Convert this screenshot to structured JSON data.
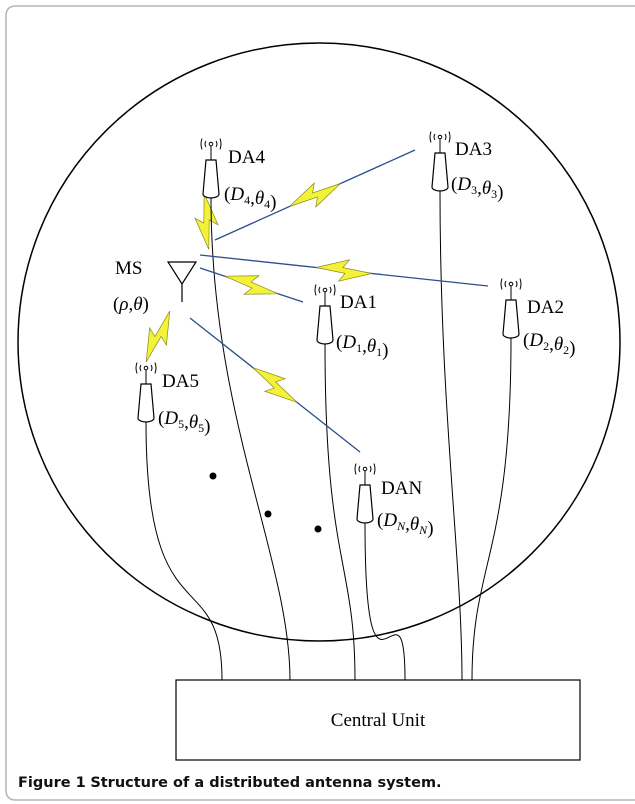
{
  "ms": {
    "label": "MS",
    "coord": [
      {
        "t": "("
      },
      {
        "t": "ρ",
        "italic": true
      },
      {
        "t": ","
      },
      {
        "t": "θ",
        "italic": true
      },
      {
        "t": ")"
      }
    ]
  },
  "nodes": [
    {
      "label": "DA4",
      "coord": [
        {
          "t": "("
        },
        {
          "t": "D",
          "italic": true
        },
        {
          "t": "4",
          "sub": true
        },
        {
          "t": ","
        },
        {
          "t": "θ",
          "italic": true
        },
        {
          "t": "4",
          "sub": true
        },
        {
          "t": ")"
        }
      ]
    },
    {
      "label": "DA3",
      "coord": [
        {
          "t": "("
        },
        {
          "t": "D",
          "italic": true
        },
        {
          "t": "3",
          "sub": true
        },
        {
          "t": ","
        },
        {
          "t": "θ",
          "italic": true
        },
        {
          "t": "3",
          "sub": true
        },
        {
          "t": ")"
        }
      ]
    },
    {
      "label": "DA1",
      "coord": [
        {
          "t": "("
        },
        {
          "t": "D",
          "italic": true
        },
        {
          "t": "1",
          "sub": true
        },
        {
          "t": ","
        },
        {
          "t": "θ",
          "italic": true
        },
        {
          "t": "1",
          "sub": true
        },
        {
          "t": ")"
        }
      ]
    },
    {
      "label": "DA2",
      "coord": [
        {
          "t": "("
        },
        {
          "t": "D",
          "italic": true
        },
        {
          "t": "2",
          "sub": true
        },
        {
          "t": ","
        },
        {
          "t": "θ",
          "italic": true
        },
        {
          "t": "2",
          "sub": true
        },
        {
          "t": ")"
        }
      ]
    },
    {
      "label": "DA5",
      "coord": [
        {
          "t": "("
        },
        {
          "t": "D",
          "italic": true
        },
        {
          "t": "5",
          "sub": true
        },
        {
          "t": ","
        },
        {
          "t": "θ",
          "italic": true
        },
        {
          "t": "5",
          "sub": true
        },
        {
          "t": ")"
        }
      ]
    },
    {
      "label": "DAN",
      "coord": [
        {
          "t": "("
        },
        {
          "t": "D",
          "italic": true
        },
        {
          "t": "N",
          "sub": true,
          "italic": true
        },
        {
          "t": ","
        },
        {
          "t": "θ",
          "italic": true
        },
        {
          "t": "N",
          "sub": true,
          "italic": true
        },
        {
          "t": ")"
        }
      ]
    }
  ],
  "central_unit": "Central Unit",
  "caption": {
    "label": "Figure 1",
    "text": "Structure of a distributed antenna system."
  }
}
